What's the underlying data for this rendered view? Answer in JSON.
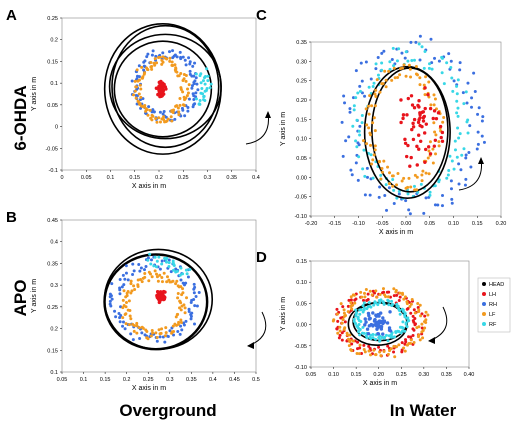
{
  "row_labels": [
    "6-OHDA",
    "APO"
  ],
  "column_labels": [
    "Overground",
    "In Water"
  ],
  "colors": {
    "HEAD": "#000000",
    "LH": "#e8141c",
    "RH": "#3b6fe0",
    "LF": "#f29a1f",
    "RF": "#38d7e6"
  },
  "legend": {
    "entries": [
      {
        "key": "HEAD",
        "label": "HEAD"
      },
      {
        "key": "LH",
        "label": "LH"
      },
      {
        "key": "RH",
        "label": "RH"
      },
      {
        "key": "LF",
        "label": "LF"
      },
      {
        "key": "RF",
        "label": "RF"
      }
    ]
  },
  "chart_data": [
    {
      "panel": "A",
      "type": "scatter",
      "xlabel": "X axis in m",
      "ylabel": "Y axis in m",
      "xlim": [
        0,
        0.4
      ],
      "ylim": [
        -0.1,
        0.25
      ],
      "xticks": [
        "0",
        "0.05",
        "0.1",
        "0.15",
        "0.2",
        "0.25",
        "0.3",
        "0.35",
        "0.4"
      ],
      "yticks": [
        "0.25",
        "0.2",
        "0.15",
        "0.1",
        "0.05",
        "0",
        "-0.05",
        "-0.1"
      ],
      "rotation": "counterclockwise",
      "series": [
        {
          "name": "HEAD",
          "kind": "loops",
          "center": [
            0.21,
            0.09
          ],
          "loops": [
            [
              0.1,
              0.11
            ],
            [
              0.11,
              0.14
            ],
            [
              0.12,
              0.15
            ],
            [
              0.115,
              0.12
            ]
          ]
        },
        {
          "name": "RH",
          "kind": "ring",
          "center": [
            0.215,
            0.095
          ],
          "r": [
            0.065,
            0.075
          ]
        },
        {
          "name": "LF",
          "kind": "ring",
          "center": [
            0.205,
            0.085
          ],
          "r": [
            0.05,
            0.07
          ]
        },
        {
          "name": "RF",
          "kind": "arc",
          "center": [
            0.215,
            0.095
          ],
          "r": [
            0.085,
            0.07
          ],
          "from": -40,
          "to": 30
        },
        {
          "name": "LH",
          "kind": "blob",
          "center": [
            0.205,
            0.085
          ],
          "r": [
            0.008,
            0.018
          ]
        }
      ]
    },
    {
      "panel": "B",
      "type": "scatter",
      "xlabel": "X axis in m",
      "ylabel": "Y axis in m",
      "xlim": [
        0.05,
        0.5
      ],
      "ylim": [
        0.1,
        0.45
      ],
      "xticks": [
        "0.05",
        "0.1",
        "0.15",
        "0.2",
        "0.25",
        "0.3",
        "0.35",
        "0.4",
        "0.45",
        "0.5"
      ],
      "yticks": [
        "0.45",
        "0.4",
        "0.35",
        "0.3",
        "0.25",
        "0.2",
        "0.15",
        "0.1"
      ],
      "rotation": "clockwise",
      "series": [
        {
          "name": "HEAD",
          "kind": "loops",
          "center": [
            0.27,
            0.265
          ],
          "loops": [
            [
              0.12,
              0.11
            ],
            [
              0.125,
              0.115
            ],
            [
              0.118,
              0.108
            ]
          ]
        },
        {
          "name": "RH",
          "kind": "ring",
          "center": [
            0.265,
            0.265
          ],
          "r": [
            0.095,
            0.09
          ]
        },
        {
          "name": "LF",
          "kind": "ring",
          "center": [
            0.265,
            0.255
          ],
          "r": [
            0.07,
            0.07
          ]
        },
        {
          "name": "RF",
          "kind": "arc",
          "center": [
            0.265,
            0.265
          ],
          "r": [
            0.1,
            0.095
          ],
          "from": 40,
          "to": 100
        },
        {
          "name": "LH",
          "kind": "blob",
          "center": [
            0.28,
            0.275
          ],
          "r": [
            0.01,
            0.012
          ]
        }
      ]
    },
    {
      "panel": "C",
      "type": "scatter",
      "xlabel": "X axis in m",
      "ylabel": "Y axis in m",
      "xlim": [
        -0.2,
        0.2
      ],
      "ylim": [
        -0.1,
        0.35
      ],
      "xticks": [
        "-0.20",
        "-0.15",
        "-0.10",
        "-0.05",
        "0.00",
        "0.05",
        "0.10",
        "0.15",
        "0.20"
      ],
      "yticks": [
        "0.35",
        "0.30",
        "0.25",
        "0.20",
        "0.15",
        "0.10",
        "0.05",
        "0.00",
        "-0.05",
        "-0.10"
      ],
      "rotation": "counterclockwise",
      "series": [
        {
          "name": "RH",
          "kind": "ring",
          "center": [
            0.015,
            0.13
          ],
          "r": [
            0.14,
            0.21
          ]
        },
        {
          "name": "RF",
          "kind": "ring",
          "center": [
            0.01,
            0.14
          ],
          "r": [
            0.115,
            0.185
          ]
        },
        {
          "name": "HEAD",
          "kind": "loops",
          "center": [
            0.005,
            0.12
          ],
          "loops": [
            [
              0.09,
              0.17
            ],
            [
              0.08,
              0.16
            ]
          ]
        },
        {
          "name": "LF",
          "kind": "ring",
          "center": [
            -0.005,
            0.13
          ],
          "r": [
            0.075,
            0.15
          ]
        },
        {
          "name": "LH",
          "kind": "blob",
          "center": [
            0.03,
            0.14
          ],
          "r": [
            0.05,
            0.12
          ]
        }
      ]
    },
    {
      "panel": "D",
      "type": "scatter",
      "xlabel": "X axis in m",
      "ylabel": "Y axis in m",
      "xlim": [
        0.05,
        0.4
      ],
      "ylim": [
        -0.1,
        0.15
      ],
      "xticks": [
        "0.05",
        "0.10",
        "0.15",
        "0.20",
        "0.25",
        "0.30",
        "0.35",
        "0.40"
      ],
      "yticks": [
        "0.15",
        "0.10",
        "0.05",
        "0.00",
        "-0.05",
        "-0.10"
      ],
      "rotation": "clockwise",
      "series": [
        {
          "name": "LH",
          "kind": "ring",
          "center": [
            0.2,
            0.005
          ],
          "r": [
            0.09,
            0.07
          ]
        },
        {
          "name": "LF",
          "kind": "ring",
          "center": [
            0.205,
            0.005
          ],
          "r": [
            0.095,
            0.075
          ]
        },
        {
          "name": "HEAD",
          "kind": "loops",
          "center": [
            0.2,
            0.005
          ],
          "loops": [
            [
              0.065,
              0.05
            ],
            [
              0.06,
              0.045
            ]
          ]
        },
        {
          "name": "RF",
          "kind": "ring",
          "center": [
            0.205,
            0.01
          ],
          "r": [
            0.055,
            0.045
          ]
        },
        {
          "name": "RH",
          "kind": "blob",
          "center": [
            0.2,
            0.005
          ],
          "r": [
            0.035,
            0.03
          ]
        }
      ]
    }
  ]
}
